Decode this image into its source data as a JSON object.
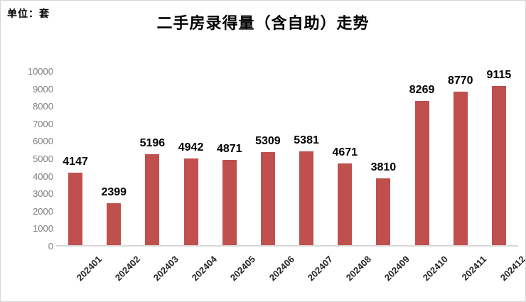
{
  "header": {
    "unit_label": "单位：套"
  },
  "chart_data": {
    "type": "bar",
    "title": "二手房录得量（含自助）走势",
    "ylabel": "单位：套",
    "xlabel": "",
    "categories": [
      "202401",
      "202402",
      "202403",
      "202404",
      "202405",
      "202406",
      "202407",
      "202408",
      "202409",
      "202410",
      "202411",
      "202412"
    ],
    "values": [
      4147,
      2399,
      5196,
      4942,
      4871,
      5309,
      5381,
      4671,
      3810,
      8269,
      8770,
      9115
    ],
    "ylim": [
      0,
      10000
    ],
    "y_ticks": [
      0,
      1000,
      2000,
      3000,
      4000,
      5000,
      6000,
      7000,
      8000,
      9000,
      10000
    ],
    "grid": false,
    "legend": false,
    "data_labels": true,
    "x_tick_rotation": -45,
    "bar_color": "#C0504D",
    "axis_line_color": "#D9D9D9",
    "y_tick_color": "#7F7F7F",
    "x_tick_color": "#262626",
    "data_label_color": "#000000"
  }
}
